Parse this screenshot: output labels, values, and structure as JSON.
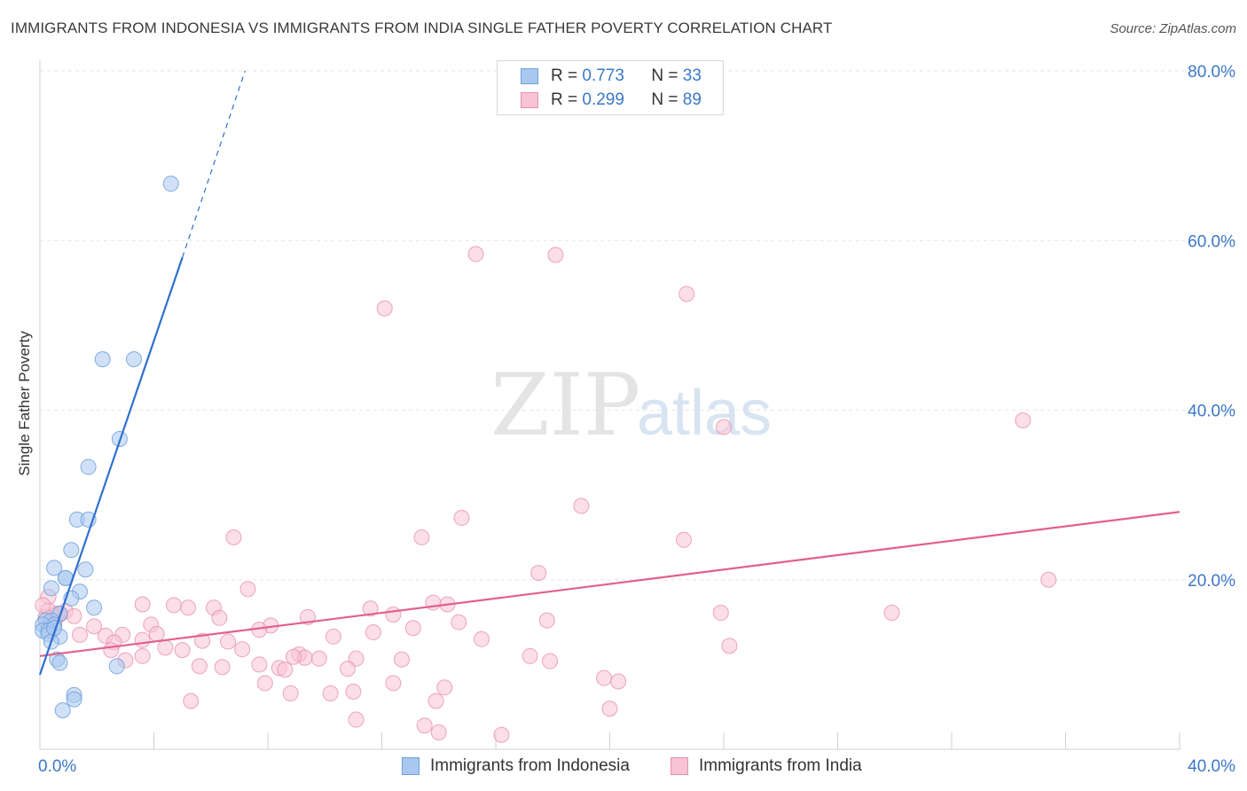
{
  "header": {
    "title": "IMMIGRANTS FROM INDONESIA VS IMMIGRANTS FROM INDIA SINGLE FATHER POVERTY CORRELATION CHART",
    "source": "Source: ZipAtlas.com"
  },
  "watermark": {
    "zip": "ZIP",
    "atlas": "atlas"
  },
  "legend": {
    "rows": [
      {
        "r_label": "R =",
        "r_value": "0.773",
        "n_label": "N =",
        "n_value": "33",
        "color": "#a9c8f0",
        "border": "#6fa0dc"
      },
      {
        "r_label": "R =",
        "r_value": "0.299",
        "n_label": "N =",
        "n_value": "89",
        "color": "#f8c3d4",
        "border": "#e890ad"
      }
    ]
  },
  "chart_data": {
    "type": "scatter",
    "title": "IMMIGRANTS FROM INDONESIA VS IMMIGRANTS FROM INDIA SINGLE FATHER POVERTY CORRELATION CHART",
    "xlabel": "",
    "ylabel": "Single Father Poverty",
    "xlim": [
      0,
      40
    ],
    "ylim": [
      0,
      80
    ],
    "x_tick_labels": [
      "0.0%",
      "40.0%"
    ],
    "y_ticks": [
      20,
      40,
      60,
      80
    ],
    "y_tick_labels": [
      "20.0%",
      "40.0%",
      "60.0%",
      "80.0%"
    ],
    "grid": true,
    "series": [
      {
        "name": "Immigrants from Indonesia",
        "color": "#a9c8f0",
        "stroke": "#6fa0dc",
        "line_color": "#2f6fd0",
        "trend": {
          "x0": 0.0,
          "y0": 8.8,
          "x1": 5.0,
          "y1": 58.0,
          "dash_x1": 7.2,
          "dash_y1": 80.0
        },
        "points": [
          [
            4.6,
            66.7
          ],
          [
            2.2,
            46.0
          ],
          [
            3.3,
            46.0
          ],
          [
            2.8,
            36.6
          ],
          [
            1.7,
            33.3
          ],
          [
            1.3,
            27.1
          ],
          [
            1.7,
            27.1
          ],
          [
            1.1,
            23.5
          ],
          [
            1.6,
            21.2
          ],
          [
            0.5,
            21.4
          ],
          [
            0.9,
            20.2
          ],
          [
            0.9,
            20.2
          ],
          [
            0.4,
            19.0
          ],
          [
            1.4,
            18.6
          ],
          [
            1.1,
            17.8
          ],
          [
            1.9,
            16.7
          ],
          [
            0.7,
            16.0
          ],
          [
            0.2,
            15.2
          ],
          [
            0.4,
            15.2
          ],
          [
            0.5,
            14.7
          ],
          [
            0.1,
            14.7
          ],
          [
            0.1,
            14.0
          ],
          [
            0.3,
            14.0
          ],
          [
            0.3,
            13.6
          ],
          [
            0.7,
            13.3
          ],
          [
            0.4,
            12.7
          ],
          [
            0.6,
            10.6
          ],
          [
            0.7,
            10.2
          ],
          [
            2.7,
            9.8
          ],
          [
            1.2,
            6.4
          ],
          [
            1.2,
            5.9
          ],
          [
            0.8,
            4.6
          ],
          [
            0.5,
            14.3
          ]
        ]
      },
      {
        "name": "Immigrants from India",
        "color": "#f8c3d4",
        "stroke": "#e890ad",
        "line_color": "#e0608f",
        "trend": {
          "x0": 0.0,
          "y0": 11.0,
          "x1": 40.0,
          "y1": 28.0
        },
        "points": [
          [
            15.3,
            58.4
          ],
          [
            18.1,
            58.3
          ],
          [
            12.1,
            52.0
          ],
          [
            22.7,
            53.7
          ],
          [
            24.0,
            38.0
          ],
          [
            34.5,
            38.8
          ],
          [
            19.0,
            28.7
          ],
          [
            14.8,
            27.3
          ],
          [
            6.8,
            25.0
          ],
          [
            13.4,
            25.0
          ],
          [
            22.6,
            24.7
          ],
          [
            17.5,
            20.8
          ],
          [
            35.4,
            20.0
          ],
          [
            7.3,
            18.9
          ],
          [
            3.6,
            17.1
          ],
          [
            4.7,
            17.0
          ],
          [
            5.2,
            16.7
          ],
          [
            6.1,
            16.7
          ],
          [
            11.6,
            16.6
          ],
          [
            13.8,
            17.3
          ],
          [
            14.3,
            17.1
          ],
          [
            23.9,
            16.1
          ],
          [
            29.9,
            16.1
          ],
          [
            0.3,
            16.4
          ],
          [
            0.6,
            16.0
          ],
          [
            0.9,
            16.3
          ],
          [
            1.2,
            15.7
          ],
          [
            0.2,
            15.6
          ],
          [
            0.5,
            15.1
          ],
          [
            6.3,
            15.5
          ],
          [
            9.4,
            15.6
          ],
          [
            12.4,
            15.9
          ],
          [
            17.8,
            15.2
          ],
          [
            14.7,
            15.0
          ],
          [
            8.1,
            14.6
          ],
          [
            3.9,
            14.7
          ],
          [
            7.7,
            14.1
          ],
          [
            1.4,
            13.5
          ],
          [
            2.3,
            13.4
          ],
          [
            2.9,
            13.5
          ],
          [
            4.1,
            13.6
          ],
          [
            11.7,
            13.8
          ],
          [
            13.1,
            14.3
          ],
          [
            1.9,
            14.5
          ],
          [
            2.6,
            12.6
          ],
          [
            3.6,
            12.9
          ],
          [
            5.7,
            12.8
          ],
          [
            6.6,
            12.7
          ],
          [
            10.3,
            13.3
          ],
          [
            15.5,
            13.0
          ],
          [
            24.2,
            12.2
          ],
          [
            2.5,
            11.7
          ],
          [
            4.4,
            12.0
          ],
          [
            5.0,
            11.7
          ],
          [
            7.1,
            11.8
          ],
          [
            9.1,
            11.2
          ],
          [
            9.3,
            10.8
          ],
          [
            3.6,
            11.0
          ],
          [
            3.0,
            10.5
          ],
          [
            8.9,
            10.9
          ],
          [
            9.8,
            10.7
          ],
          [
            11.1,
            10.7
          ],
          [
            12.7,
            10.6
          ],
          [
            17.2,
            11.0
          ],
          [
            17.9,
            10.4
          ],
          [
            5.6,
            9.8
          ],
          [
            6.4,
            9.7
          ],
          [
            7.7,
            10.0
          ],
          [
            8.4,
            9.6
          ],
          [
            10.8,
            9.5
          ],
          [
            8.6,
            9.4
          ],
          [
            7.9,
            7.8
          ],
          [
            12.4,
            7.8
          ],
          [
            14.2,
            7.3
          ],
          [
            19.8,
            8.4
          ],
          [
            20.3,
            8.0
          ],
          [
            8.8,
            6.6
          ],
          [
            10.2,
            6.6
          ],
          [
            11.0,
            6.8
          ],
          [
            13.9,
            5.7
          ],
          [
            5.3,
            5.7
          ],
          [
            20.0,
            4.8
          ],
          [
            11.1,
            3.5
          ],
          [
            13.5,
            2.8
          ],
          [
            14.0,
            2.0
          ],
          [
            16.2,
            1.7
          ],
          [
            0.3,
            18.0
          ],
          [
            0.1,
            17.0
          ],
          [
            0.7,
            15.9
          ]
        ]
      }
    ]
  },
  "bottom_legend": [
    {
      "label": "Immigrants from Indonesia",
      "color": "#a9c8f0",
      "border": "#6fa0dc"
    },
    {
      "label": "Immigrants from India",
      "color": "#f8c3d4",
      "border": "#e890ad"
    }
  ]
}
